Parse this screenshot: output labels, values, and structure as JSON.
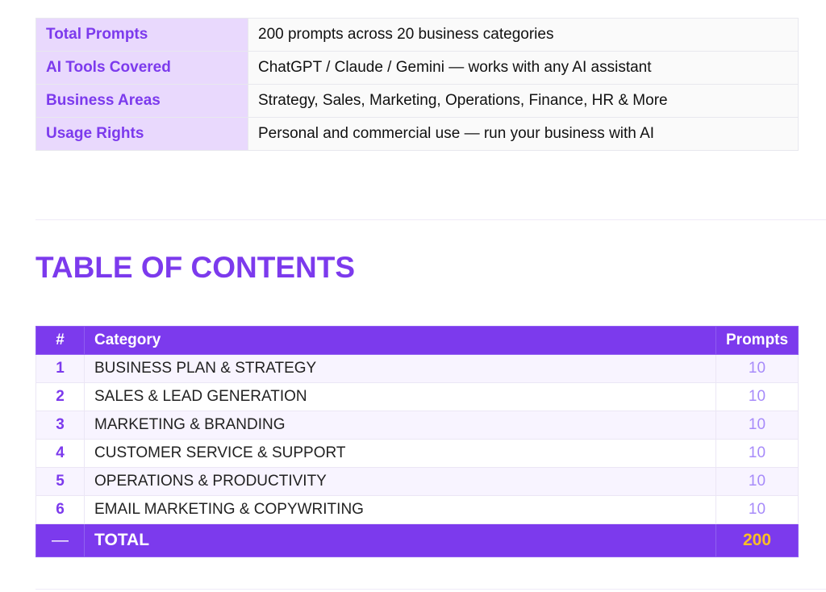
{
  "info_table": {
    "rows": [
      [
        "Total Prompts",
        "200 prompts across 20 business categories"
      ],
      [
        "AI Tools Covered",
        "ChatGPT / Claude / Gemini — works with any AI assistant"
      ],
      [
        "Business Areas",
        "Strategy, Sales, Marketing, Operations, Finance, HR & More"
      ],
      [
        "Usage Rights",
        "Personal and commercial use — run your business with AI"
      ]
    ]
  },
  "toc": {
    "title": "TABLE OF CONTENTS",
    "header": [
      "#",
      "Category",
      "Prompts"
    ],
    "rows": [
      [
        "1",
        "BUSINESS PLAN & STRATEGY",
        "10"
      ],
      [
        "2",
        "SALES & LEAD GENERATION",
        "10"
      ],
      [
        "3",
        "MARKETING & BRANDING",
        "10"
      ],
      [
        "4",
        "CUSTOMER SERVICE & SUPPORT",
        "10"
      ],
      [
        "5",
        "OPERATIONS & PRODUCTIVITY",
        "10"
      ],
      [
        "6",
        "EMAIL MARKETING & COPYWRITING",
        "10"
      ]
    ],
    "total": [
      "—",
      "TOTAL",
      "200"
    ]
  }
}
